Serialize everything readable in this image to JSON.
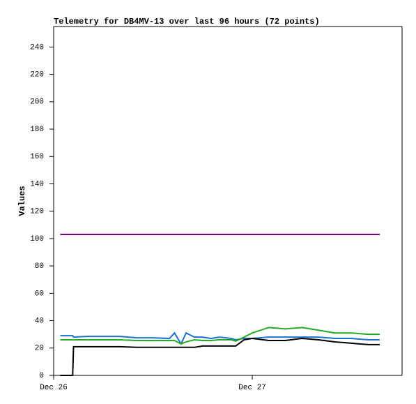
{
  "chart_data": {
    "type": "line",
    "title": "Telemetry for DB4MV-13 over last 96 hours (72 points)",
    "y_label": "Values",
    "x": [
      0.8,
      2.3,
      2.4,
      4,
      6,
      8,
      10,
      12,
      14,
      14.6,
      15.4,
      16,
      17,
      18,
      19,
      20,
      21.5,
      22,
      23,
      24,
      26,
      28,
      30,
      32,
      34,
      36,
      38,
      39.4
    ],
    "series": [
      {
        "color": "#800080",
        "values": [
          103,
          103,
          103,
          103,
          103,
          103,
          103,
          103,
          103,
          103,
          103,
          103,
          103,
          103,
          103,
          103,
          103,
          103,
          103,
          103,
          103,
          103,
          103,
          103,
          103,
          103,
          103,
          103
        ]
      },
      {
        "color": "#1f6fd0",
        "values": [
          29,
          29,
          28,
          28.5,
          28.5,
          28.5,
          27.5,
          27.5,
          27,
          31,
          23,
          31,
          28,
          28,
          27,
          28,
          27,
          26,
          27,
          27,
          28,
          28,
          28,
          28,
          27,
          27,
          26,
          26
        ]
      },
      {
        "color": "#22aa22",
        "values": [
          26,
          26,
          26,
          26,
          26,
          26,
          25.5,
          25.5,
          25.5,
          25.5,
          23,
          24.5,
          26,
          25.5,
          25.5,
          26,
          26,
          25,
          28,
          31,
          35,
          34,
          35,
          33,
          31,
          31,
          30,
          30
        ]
      },
      {
        "color": "#000000",
        "values": [
          0,
          0,
          21,
          21,
          21,
          21,
          20.5,
          20.5,
          20.5,
          20.5,
          20.5,
          20.5,
          20.5,
          21.5,
          21.5,
          21.5,
          21.5,
          21.5,
          26,
          27,
          25.5,
          25.5,
          27,
          26,
          24.5,
          23.5,
          22.5,
          22.5
        ]
      }
    ],
    "xlim": [
      0,
      42.1
    ],
    "xticks": [
      {
        "value": 0,
        "label": "Dec 26"
      },
      {
        "value": 24,
        "label": "Dec 27"
      }
    ],
    "ylim": [
      0,
      255
    ],
    "yticks": [
      0,
      20,
      40,
      60,
      80,
      100,
      120,
      140,
      160,
      180,
      200,
      220,
      240
    ],
    "grid": false
  }
}
